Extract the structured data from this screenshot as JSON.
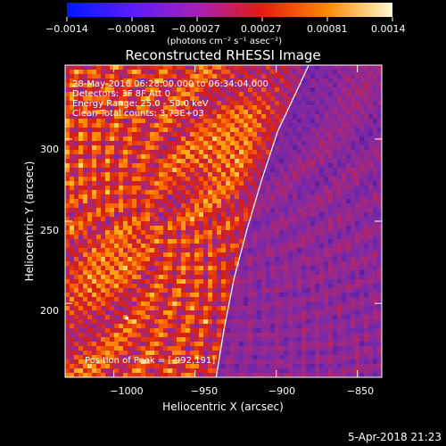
{
  "colorbar": {
    "ticks": [
      "−0.0014",
      "−0.00081",
      "−0.00027",
      "0.00027",
      "0.00081",
      "0.0014"
    ],
    "unit_label": "(photons cm⁻² s⁻¹ asec⁻²)",
    "range": [
      -0.0014,
      0.0014
    ]
  },
  "chart_data": {
    "type": "heatmap",
    "title": "Reconstructed RHESSI Image",
    "xlabel": "Heliocentric X (arcsec)",
    "ylabel": "Heliocentric Y (arcsec)",
    "xlim": [
      -1030,
      -835
    ],
    "ylim": [
      155,
      345
    ],
    "x_ticks": [
      -1000,
      -950,
      -900,
      -850
    ],
    "x_tick_labels": [
      "−1000",
      "−950",
      "−900",
      "−850"
    ],
    "y_ticks": [
      200,
      250,
      300
    ],
    "y_tick_labels": [
      "200",
      "250",
      "300"
    ],
    "limb_curve": [
      [
        -937,
        155
      ],
      [
        -932,
        185
      ],
      [
        -926,
        215
      ],
      [
        -918,
        245
      ],
      [
        -909,
        275
      ],
      [
        -899,
        305
      ],
      [
        -887,
        330
      ],
      [
        -880,
        345
      ]
    ],
    "peak": [
      -992,
      191
    ],
    "peak_label": "Position of Peak = [-992,191]",
    "info_lines": [
      "28-May-2016 06:28:00.000 to 06:34:04.000",
      "Detectors: 3F 8F  Att 0",
      "Energy Range: 25.0 - 50.0 keV",
      "Clean      Total counts: 3.73E+03"
    ]
  },
  "footer_timestamp": "5-Apr-2018 21:23"
}
